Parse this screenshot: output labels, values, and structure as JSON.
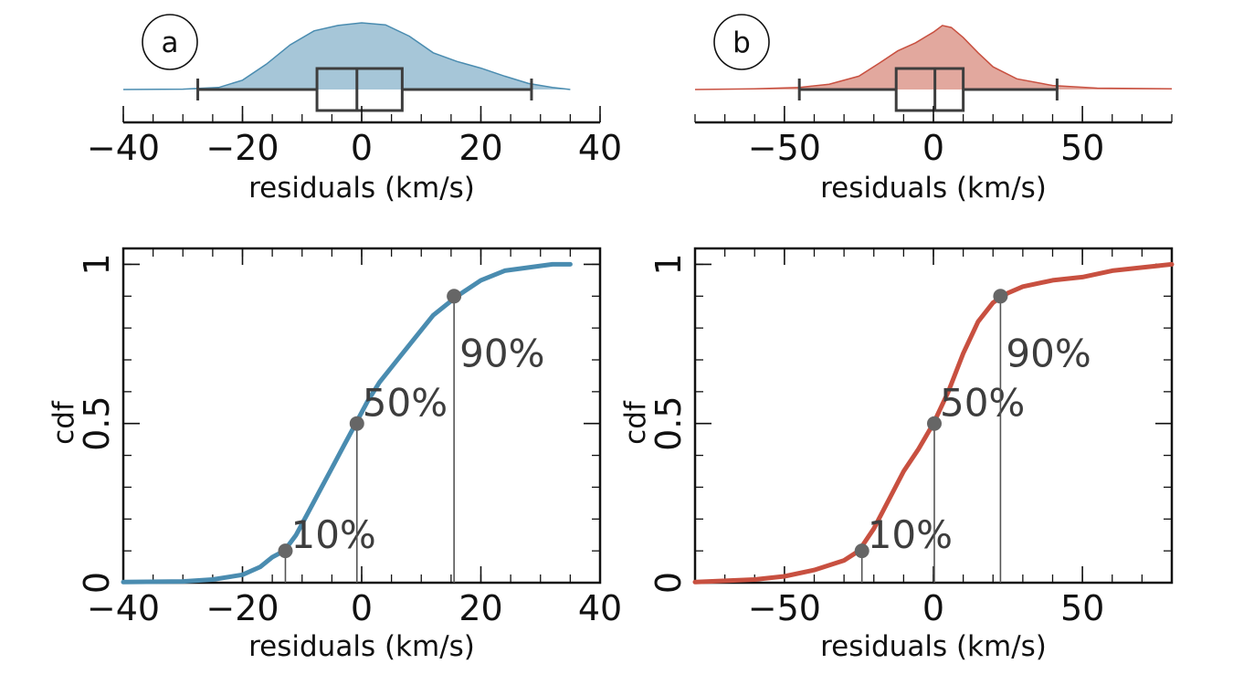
{
  "chart_data": [
    {
      "type": "area",
      "panel_label": "a",
      "xlabel": "residuals (km/s)",
      "xlim": [
        -40,
        40
      ],
      "x_ticks": [
        -40,
        -20,
        0,
        20,
        40
      ],
      "x_tick_labels": [
        "−40",
        "−20",
        "0",
        "20",
        "40"
      ],
      "color": "#4a8cb0",
      "fill": "#a6c6d8",
      "density": {
        "x": [
          -40,
          -30,
          -24,
          -20,
          -16,
          -12,
          -8,
          -4,
          0,
          4,
          8,
          12,
          16,
          20,
          24,
          28,
          32,
          35
        ],
        "y": [
          0.0,
          0.005,
          0.03,
          0.14,
          0.38,
          0.67,
          0.88,
          0.96,
          1.0,
          0.97,
          0.8,
          0.55,
          0.42,
          0.32,
          0.2,
          0.09,
          0.03,
          0.0
        ]
      },
      "boxplot": {
        "whisker_low": -27.5,
        "q1": -7.5,
        "median": -0.8,
        "q3": 6.8,
        "whisker_high": 28.5
      }
    },
    {
      "type": "area",
      "panel_label": "b",
      "xlabel": "residuals (km/s)",
      "xlim": [
        -80,
        80
      ],
      "x_ticks": [
        -50,
        0,
        50
      ],
      "x_tick_labels": [
        "−50",
        "0",
        "50"
      ],
      "color": "#c85040",
      "fill": "#e2a89e",
      "density": {
        "x": [
          -80,
          -60,
          -45,
          -35,
          -25,
          -18,
          -12,
          -6,
          0,
          3,
          6,
          10,
          15,
          20,
          28,
          40,
          55,
          80
        ],
        "y": [
          0.0,
          0.01,
          0.03,
          0.08,
          0.2,
          0.4,
          0.58,
          0.7,
          0.86,
          0.96,
          0.93,
          0.78,
          0.55,
          0.34,
          0.16,
          0.06,
          0.02,
          0.01
        ]
      },
      "boxplot": {
        "whisker_low": -45,
        "q1": -12.5,
        "median": 0.5,
        "q3": 10,
        "whisker_high": 41.5
      }
    },
    {
      "type": "line",
      "xlabel": "residuals (km/s)",
      "ylabel": "cdf",
      "xlim": [
        -40,
        40
      ],
      "ylim": [
        0,
        1.05
      ],
      "x_ticks": [
        -40,
        -20,
        0,
        20,
        40
      ],
      "x_tick_labels": [
        "−40",
        "−20",
        "0",
        "20",
        "40"
      ],
      "y_ticks": [
        0,
        0.5,
        1
      ],
      "y_tick_labels": [
        "0",
        "0.5",
        "1"
      ],
      "color": "#4a8cb0",
      "series": [
        {
          "x": [
            -40,
            -30,
            -25,
            -20,
            -17,
            -15,
            -13,
            -11,
            -9,
            -7,
            -5,
            -3,
            -1,
            1,
            3,
            6,
            9,
            12,
            16,
            20,
            24,
            28,
            32,
            35
          ],
          "y": [
            0.002,
            0.004,
            0.01,
            0.025,
            0.05,
            0.08,
            0.1,
            0.15,
            0.22,
            0.29,
            0.36,
            0.43,
            0.5,
            0.57,
            0.63,
            0.7,
            0.77,
            0.84,
            0.9,
            0.95,
            0.98,
            0.99,
            1.0,
            1.0
          ]
        }
      ],
      "percentiles": [
        {
          "label": "10%",
          "x": -12.8,
          "y": 0.1
        },
        {
          "label": "50%",
          "x": -0.8,
          "y": 0.5
        },
        {
          "label": "90%",
          "x": 15.5,
          "y": 0.9
        }
      ]
    },
    {
      "type": "line",
      "xlabel": "residuals (km/s)",
      "ylabel": "cdf",
      "xlim": [
        -80,
        80
      ],
      "ylim": [
        0,
        1.05
      ],
      "x_ticks": [
        -50,
        0,
        50
      ],
      "x_tick_labels": [
        "−50",
        "0",
        "50"
      ],
      "y_ticks": [
        0,
        0.5,
        1
      ],
      "y_tick_labels": [
        "0",
        "0.5",
        "1"
      ],
      "color": "#c85040",
      "series": [
        {
          "x": [
            -80,
            -60,
            -50,
            -40,
            -30,
            -25,
            -20,
            -15,
            -10,
            -5,
            0,
            5,
            10,
            15,
            20,
            25,
            30,
            40,
            50,
            60,
            70,
            80
          ],
          "y": [
            0.002,
            0.01,
            0.02,
            0.04,
            0.07,
            0.1,
            0.17,
            0.26,
            0.35,
            0.42,
            0.5,
            0.6,
            0.72,
            0.82,
            0.88,
            0.91,
            0.93,
            0.95,
            0.96,
            0.98,
            0.99,
            1.0
          ]
        }
      ],
      "percentiles": [
        {
          "label": "10%",
          "x": -24,
          "y": 0.1
        },
        {
          "label": "50%",
          "x": 0.3,
          "y": 0.5
        },
        {
          "label": "90%",
          "x": 22.5,
          "y": 0.9
        }
      ]
    }
  ]
}
